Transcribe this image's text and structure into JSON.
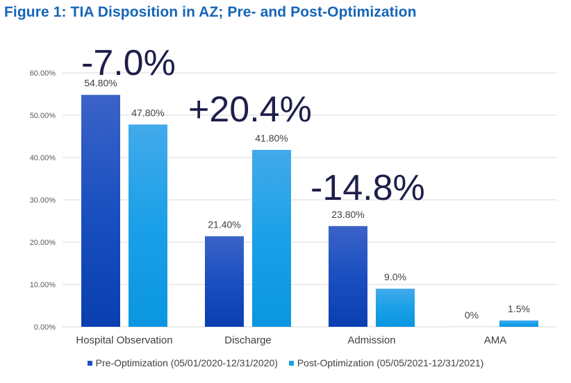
{
  "title": "Figure 1: TIA Disposition in AZ; Pre- and Post-Optimization",
  "colors": {
    "pre": "#1f4fc4",
    "post": "#1ca0e6",
    "annotation": "#1e1e4a",
    "grid": "#d9d9d9"
  },
  "chart_data": {
    "type": "bar",
    "categories": [
      "Hospital Observation",
      "Discharge",
      "Admission",
      "AMA"
    ],
    "series": [
      {
        "name": "Pre-Optimization (05/01/2020-12/31/2020)",
        "values": [
          54.8,
          21.4,
          23.8,
          0
        ],
        "labels": [
          "54.80%",
          "21.40%",
          "23.80%",
          "0%"
        ]
      },
      {
        "name": "Post-Optimization (05/05/2021-12/31/2021)",
        "values": [
          47.8,
          41.8,
          9.0,
          1.5
        ],
        "labels": [
          "47.80%",
          "41.80%",
          "9.0%",
          "1.5%"
        ]
      }
    ],
    "ylim": [
      0,
      60
    ],
    "yticks": [
      0,
      10,
      20,
      30,
      40,
      50,
      60
    ],
    "ytick_labels": [
      "0.00%",
      "10.00%",
      "20.00%",
      "30.00%",
      "40.00%",
      "50.00%",
      "60.00%"
    ],
    "annotations": [
      {
        "text": "-7.0%",
        "category": "Hospital Observation"
      },
      {
        "text": "+20.4%",
        "category": "Discharge"
      },
      {
        "text": "-14.8%",
        "category": "Admission"
      }
    ],
    "grid": true,
    "legend": "bottom"
  }
}
